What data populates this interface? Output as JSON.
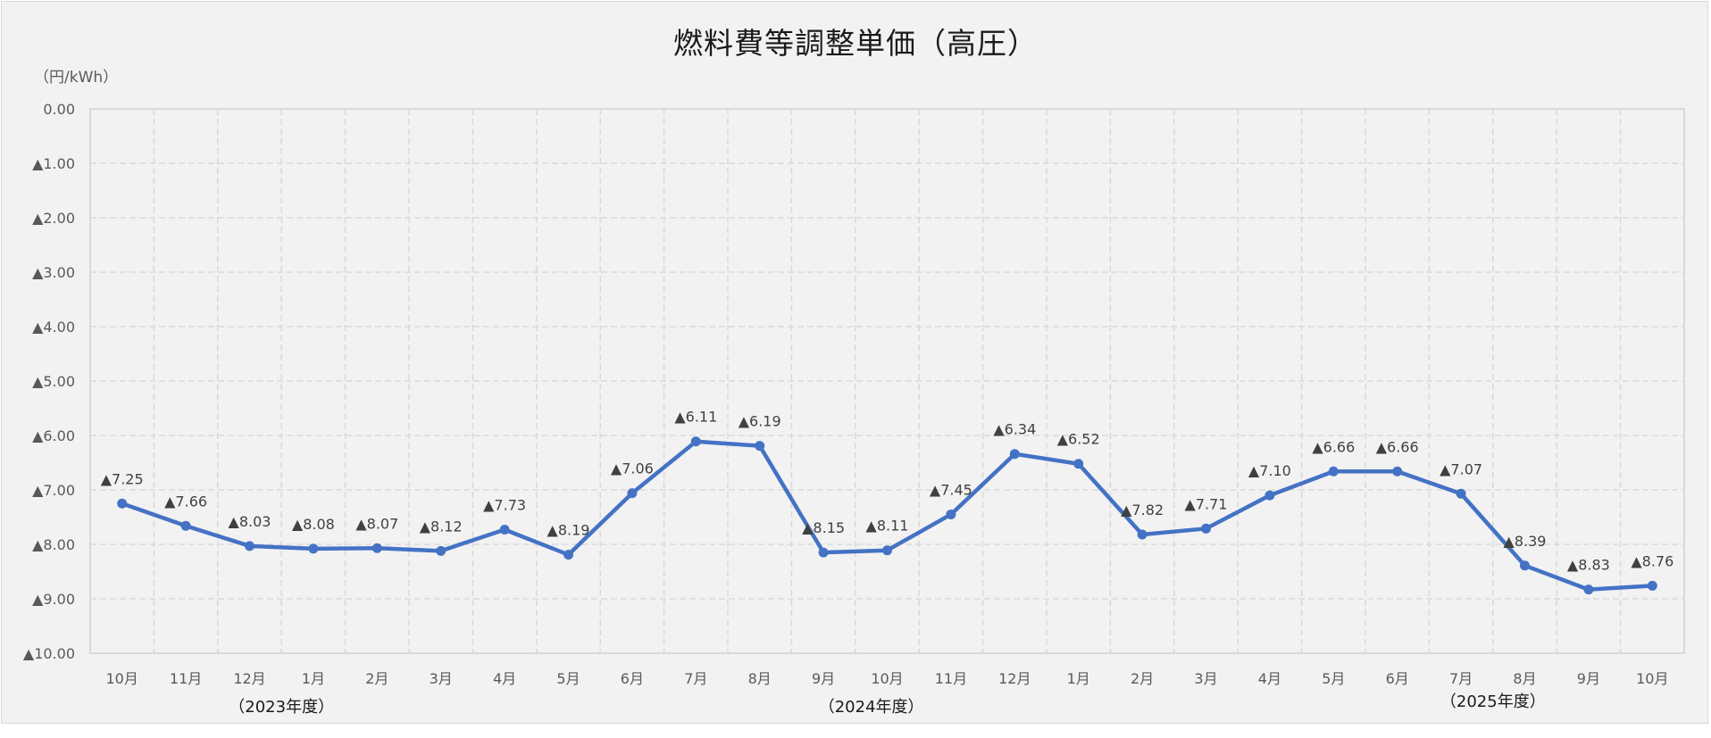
{
  "chart_data": {
    "type": "line",
    "title": "燃料費等調整単価（高圧）",
    "ylabel": "（円/kWh）",
    "xlabel": "",
    "ylim": [
      -10,
      0
    ],
    "y_axis_inverted_display": true,
    "y_ticks": [
      "0.00",
      "▲1.00",
      "▲2.00",
      "▲3.00",
      "▲4.00",
      "▲5.00",
      "▲6.00",
      "▲7.00",
      "▲8.00",
      "▲9.00",
      "▲10.00"
    ],
    "grid": {
      "horizontal": true,
      "vertical": true,
      "style": "dashed"
    },
    "legend": null,
    "categories": [
      "10月",
      "11月",
      "12月",
      "1月",
      "2月",
      "3月",
      "4月",
      "5月",
      "6月",
      "7月",
      "8月",
      "9月",
      "10月",
      "11月",
      "12月",
      "1月",
      "2月",
      "3月",
      "4月",
      "5月",
      "6月",
      "7月",
      "8月",
      "9月",
      "10月"
    ],
    "category_groups": [
      {
        "label": "（2023年度）",
        "center_index": 2.5
      },
      {
        "label": "（2024年度）",
        "center_index": 11.75
      },
      {
        "label": "（2025年度）",
        "center_index": 21.5
      }
    ],
    "series": [
      {
        "name": "燃料費等調整単価",
        "color": "#4472c4",
        "values": [
          -7.25,
          -7.66,
          -8.03,
          -8.08,
          -8.07,
          -8.12,
          -7.73,
          -8.19,
          -7.06,
          -6.11,
          -6.19,
          -8.15,
          -8.11,
          -7.45,
          -6.34,
          -6.52,
          -7.82,
          -7.71,
          -7.1,
          -6.66,
          -6.66,
          -7.07,
          -8.39,
          -8.83,
          -8.76
        ],
        "data_labels": [
          "▲7.25",
          "▲7.66",
          "▲8.03",
          "▲8.08",
          "▲8.07",
          "▲8.12",
          "▲7.73",
          "▲8.19",
          "▲7.06",
          "▲6.11",
          "▲6.19",
          "▲8.15",
          "▲8.11",
          "▲7.45",
          "▲6.34",
          "▲6.52",
          "▲7.82",
          "▲7.71",
          "▲7.10",
          "▲6.66",
          "▲6.66",
          "▲7.07",
          "▲8.39",
          "▲8.83",
          "▲8.76"
        ]
      }
    ]
  },
  "colors": {
    "background": "#f2f2f2",
    "frame_border": "#d9d9d9",
    "grid": "#d9d9d9",
    "axis_text": "#595959",
    "data_label": "#404040",
    "line": "#4472c4"
  }
}
